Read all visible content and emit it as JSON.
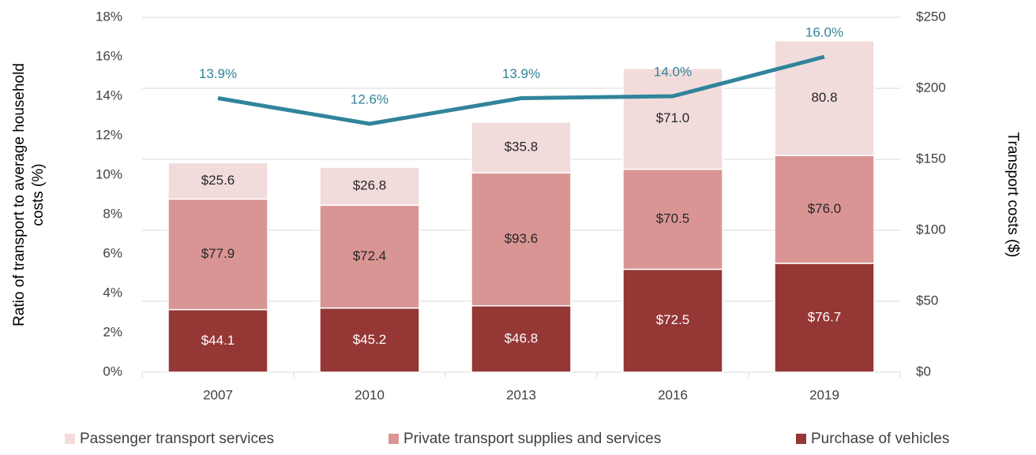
{
  "chart_data": {
    "type": "bar",
    "categories": [
      "2007",
      "2010",
      "2013",
      "2016",
      "2019"
    ],
    "ylabel": [
      "Ratio of transport to average household",
      "costs (%)"
    ],
    "y2label": "Transport costs ($)",
    "ylim": [
      0,
      18
    ],
    "yticks": [
      {
        "value": 0,
        "label": "0%"
      },
      {
        "value": 2,
        "label": "2%"
      },
      {
        "value": 4,
        "label": "4%"
      },
      {
        "value": 6,
        "label": "6%"
      },
      {
        "value": 8,
        "label": "8%"
      },
      {
        "value": 10,
        "label": "10%"
      },
      {
        "value": 12,
        "label": "12%"
      },
      {
        "value": 14,
        "label": "14%"
      },
      {
        "value": 16,
        "label": "16%"
      },
      {
        "value": 18,
        "label": "18%"
      }
    ],
    "y2lim": [
      0,
      250
    ],
    "y2ticks": [
      {
        "value": 0,
        "label": "$0"
      },
      {
        "value": 50,
        "label": "$50"
      },
      {
        "value": 100,
        "label": "$100"
      },
      {
        "value": 150,
        "label": "$150"
      },
      {
        "value": 200,
        "label": "$200"
      },
      {
        "value": 250,
        "label": "$250"
      }
    ],
    "grid": true,
    "legend": "bottom",
    "series": [
      {
        "name": "Passenger transport services",
        "type": "bar",
        "axis": "y2",
        "color": "#f2dcdb",
        "label_color": "#262626",
        "values": [
          25.6,
          26.8,
          35.8,
          71.0,
          80.8
        ],
        "value_labels": [
          "$25.6",
          "$26.8",
          "$35.8",
          "$71.0",
          "80.8"
        ]
      },
      {
        "name": "Private transport supplies and services",
        "type": "bar",
        "axis": "y2",
        "color": "#d99594",
        "label_color": "#262626",
        "values": [
          77.9,
          72.4,
          93.6,
          70.5,
          76.0
        ],
        "value_labels": [
          "$77.9",
          "$72.4",
          "$93.6",
          "$70.5",
          "$76.0"
        ]
      },
      {
        "name": "Purchase of vehicles",
        "type": "bar",
        "axis": "y2",
        "color": "#953735",
        "label_color": "#ffffff",
        "values": [
          44.1,
          45.2,
          46.8,
          72.5,
          76.7
        ],
        "value_labels": [
          "$44.1",
          "$45.2",
          "$46.8",
          "$72.5",
          "$76.7"
        ]
      },
      {
        "type": "line",
        "axis": "y",
        "color": "#31849b",
        "label_color": "#31849b",
        "values": [
          13.9,
          12.6,
          13.9,
          14.0,
          16.0
        ],
        "value_labels": [
          "13.9%",
          "12.6%",
          "13.9%",
          "14.0%",
          "16.0%"
        ]
      }
    ]
  }
}
